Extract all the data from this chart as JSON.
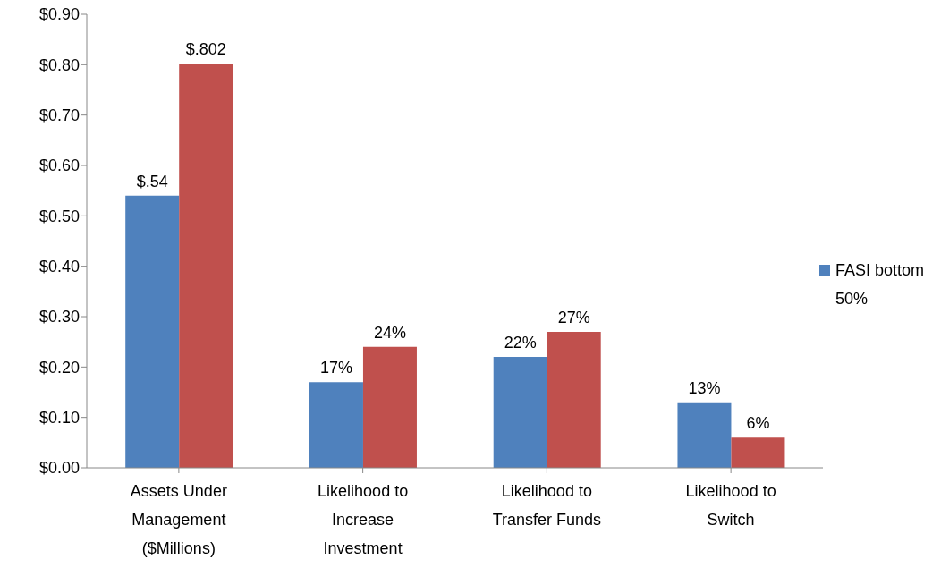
{
  "chart_data": {
    "type": "bar",
    "categories": [
      "Assets Under Management ($Millions)",
      "Likelihood to Increase Investment",
      "Likelihood to Transfer Funds",
      "Likelihood to Switch"
    ],
    "series": [
      {
        "name": "FASI bottom 50%",
        "color": "#4f81bd",
        "values": [
          0.54,
          0.17,
          0.22,
          0.13
        ],
        "value_labels": [
          "$.54",
          "17%",
          "22%",
          "13%"
        ]
      },
      {
        "color": "#c0504d",
        "values": [
          0.802,
          0.24,
          0.27,
          0.06
        ],
        "value_labels": [
          "$.802",
          "24%",
          "27%",
          "6%"
        ]
      }
    ],
    "ylim": [
      0,
      0.9
    ],
    "yticks": [
      {
        "value": 0,
        "label": "$0.00"
      },
      {
        "value": 0.1,
        "label": "$0.10"
      },
      {
        "value": 0.2,
        "label": "$0.20"
      },
      {
        "value": 0.3,
        "label": "$0.30"
      },
      {
        "value": 0.4,
        "label": "$0.40"
      },
      {
        "value": 0.5,
        "label": "$0.50"
      },
      {
        "value": 0.6,
        "label": "$0.60"
      },
      {
        "value": 0.7,
        "label": "$0.70"
      },
      {
        "value": 0.8,
        "label": "$0.80"
      },
      {
        "value": 0.9,
        "label": "$0.90"
      }
    ],
    "grid": false,
    "legend": "right"
  }
}
